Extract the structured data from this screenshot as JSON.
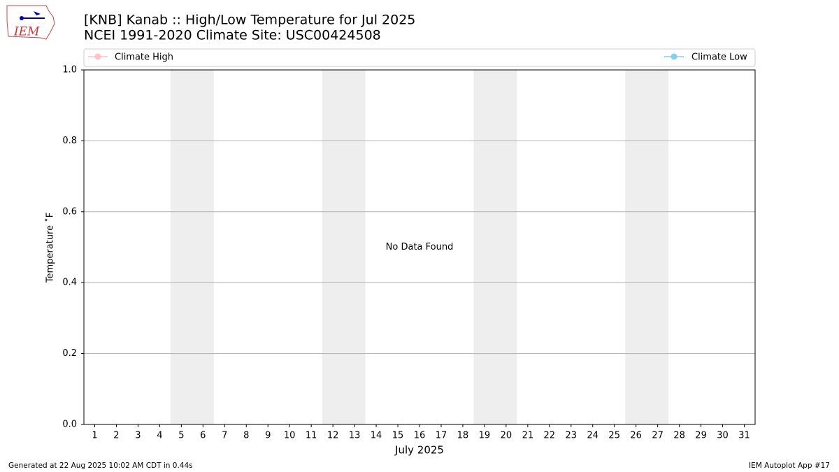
{
  "logo_text": "IEM",
  "footer": {
    "left": "Generated at 22 Aug 2025 10:02 AM CDT in 0.44s",
    "right": "IEM Autoplot App #17"
  },
  "chart_data": {
    "type": "line",
    "title": "[KNB] Kanab :: High/Low Temperature for Jul 2025",
    "subtitle": "NCEI 1991-2020 Climate Site: USC00424508",
    "xlabel": "July 2025",
    "ylabel": "Temperature ˚F",
    "annotation": {
      "text": "No Data Found",
      "x": 16,
      "y": 0.5
    },
    "series": [
      {
        "name": "Climate High",
        "color": "pink",
        "values": []
      },
      {
        "name": "Climate Low",
        "color": "skyblue",
        "values": []
      }
    ],
    "xlim": [
      0.5,
      31.5
    ],
    "xticks": [
      1,
      2,
      3,
      4,
      5,
      6,
      7,
      8,
      9,
      10,
      11,
      12,
      13,
      14,
      15,
      16,
      17,
      18,
      19,
      20,
      21,
      22,
      23,
      24,
      25,
      26,
      27,
      28,
      29,
      30,
      31
    ],
    "ylim": [
      0,
      1
    ],
    "yticks": [
      {
        "value": 0,
        "label": "0.0"
      },
      0.2,
      0.4,
      0.6,
      0.8,
      {
        "value": 1,
        "label": "1.0"
      }
    ],
    "shaded_spans": [
      [
        4.5,
        6.5
      ],
      [
        11.5,
        13.5
      ],
      [
        18.5,
        20.5
      ],
      [
        25.5,
        27.5
      ]
    ],
    "shade_color": "#eeeeee",
    "grid": true
  }
}
